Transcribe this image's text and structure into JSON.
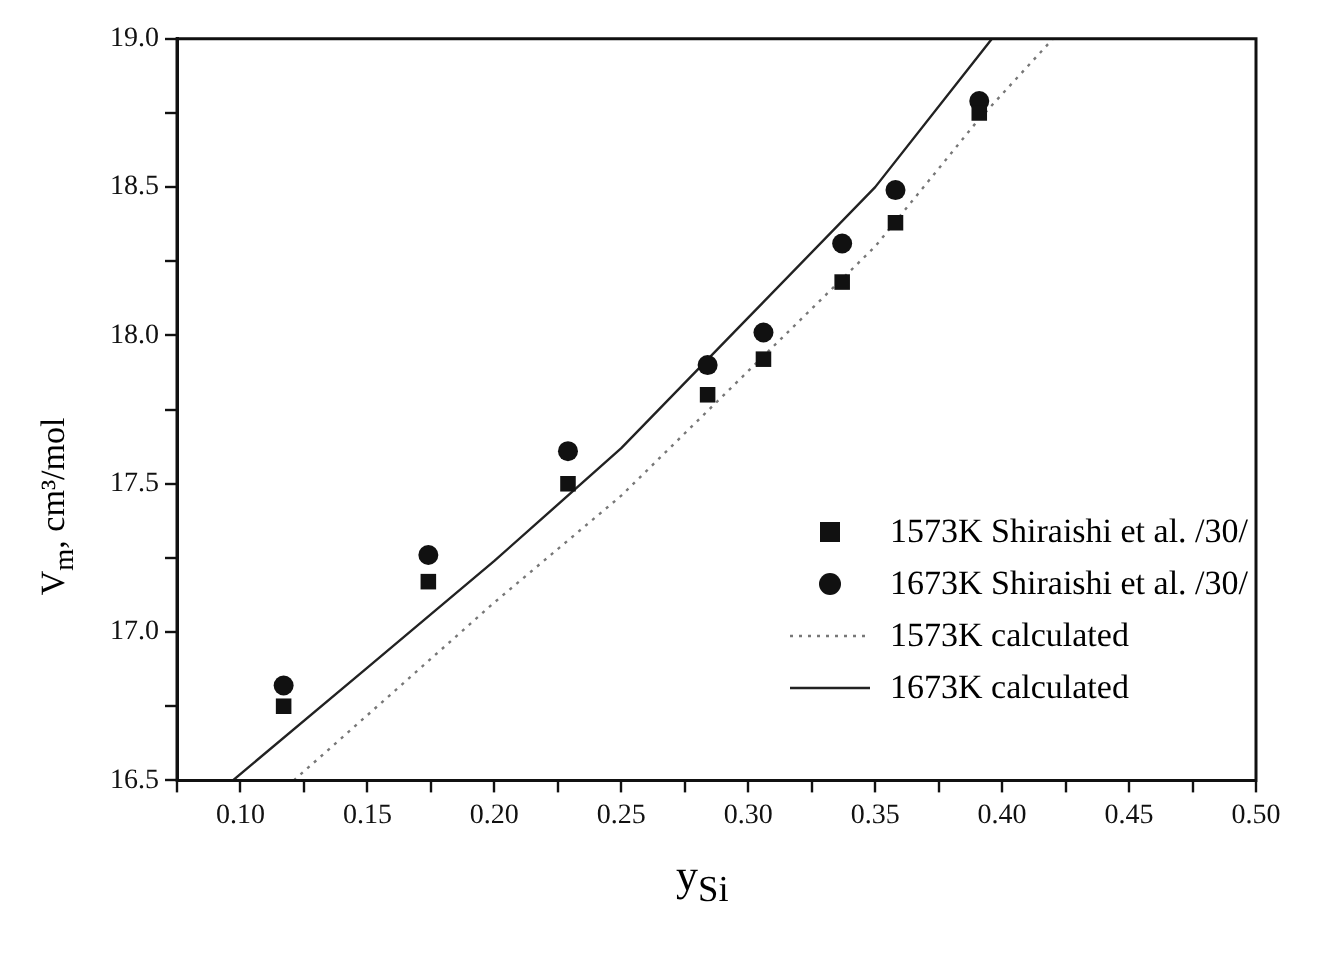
{
  "chart_data": {
    "type": "scatter",
    "xlabel": "y$_{Si}$",
    "ylabel": "V$_{m}$, cm³/mol",
    "xlim": [
      0.075,
      0.5
    ],
    "ylim": [
      16.5,
      19.0
    ],
    "xticks": [
      {
        "value": 0.075,
        "label": null
      },
      {
        "value": 0.1,
        "label": "0.10"
      },
      {
        "value": 0.125,
        "label": null
      },
      0.15,
      {
        "value": 0.175,
        "label": null
      },
      {
        "value": 0.2,
        "label": "0.20"
      },
      {
        "value": 0.225,
        "label": null
      },
      0.25,
      {
        "value": 0.275,
        "label": null
      },
      {
        "value": 0.3,
        "label": "0.30"
      },
      {
        "value": 0.325,
        "label": null
      },
      0.35,
      {
        "value": 0.375,
        "label": null
      },
      {
        "value": 0.4,
        "label": "0.40"
      },
      {
        "value": 0.425,
        "label": null
      },
      0.45,
      {
        "value": 0.475,
        "label": null
      },
      {
        "value": 0.5,
        "label": "0.50"
      }
    ],
    "yticks": [
      16.5,
      {
        "value": 16.75,
        "label": null
      },
      {
        "value": 17,
        "label": "17.0"
      },
      {
        "value": 17.25,
        "label": null
      },
      17.5,
      {
        "value": 17.75,
        "label": null
      },
      {
        "value": 18,
        "label": "18.0"
      },
      {
        "value": 18.25,
        "label": null
      },
      18.5,
      {
        "value": 18.75,
        "label": null
      },
      {
        "value": 19,
        "label": "19.0"
      }
    ],
    "grid": false,
    "legend": "right",
    "series": [
      {
        "name": "1573K Shiraishi et al. /30/",
        "color": "#111111",
        "marker": "square",
        "x": [
          0.117,
          0.174,
          0.229,
          0.284,
          0.306,
          0.337,
          0.358,
          0.391
        ],
        "values": [
          16.75,
          17.17,
          17.5,
          17.8,
          17.92,
          18.18,
          18.38,
          18.75
        ]
      },
      {
        "name": "1673K Shiraishi et al. /30/",
        "color": "#111111",
        "marker": "circle",
        "x": [
          0.117,
          0.174,
          0.229,
          0.284,
          0.306,
          0.337,
          0.358,
          0.391
        ],
        "values": [
          16.82,
          17.26,
          17.61,
          17.9,
          18.01,
          18.31,
          18.49,
          18.79
        ]
      },
      {
        "name": "1573K calculated",
        "type": "line",
        "color": "#777777",
        "marker": "none",
        "line_style": "dotted",
        "x": [
          0.121,
          0.15,
          0.2,
          0.25,
          0.3,
          0.35,
          0.39,
          0.42
        ],
        "values": [
          16.5,
          16.72,
          17.1,
          17.46,
          17.88,
          18.3,
          18.72,
          19.0
        ]
      },
      {
        "name": "1673K calculated",
        "type": "line",
        "color": "#222222",
        "marker": "none",
        "line_style": "solid",
        "x": [
          0.097,
          0.15,
          0.2,
          0.25,
          0.3,
          0.35,
          0.396
        ],
        "values": [
          16.5,
          16.88,
          17.24,
          17.62,
          18.06,
          18.5,
          19.0
        ]
      }
    ]
  }
}
